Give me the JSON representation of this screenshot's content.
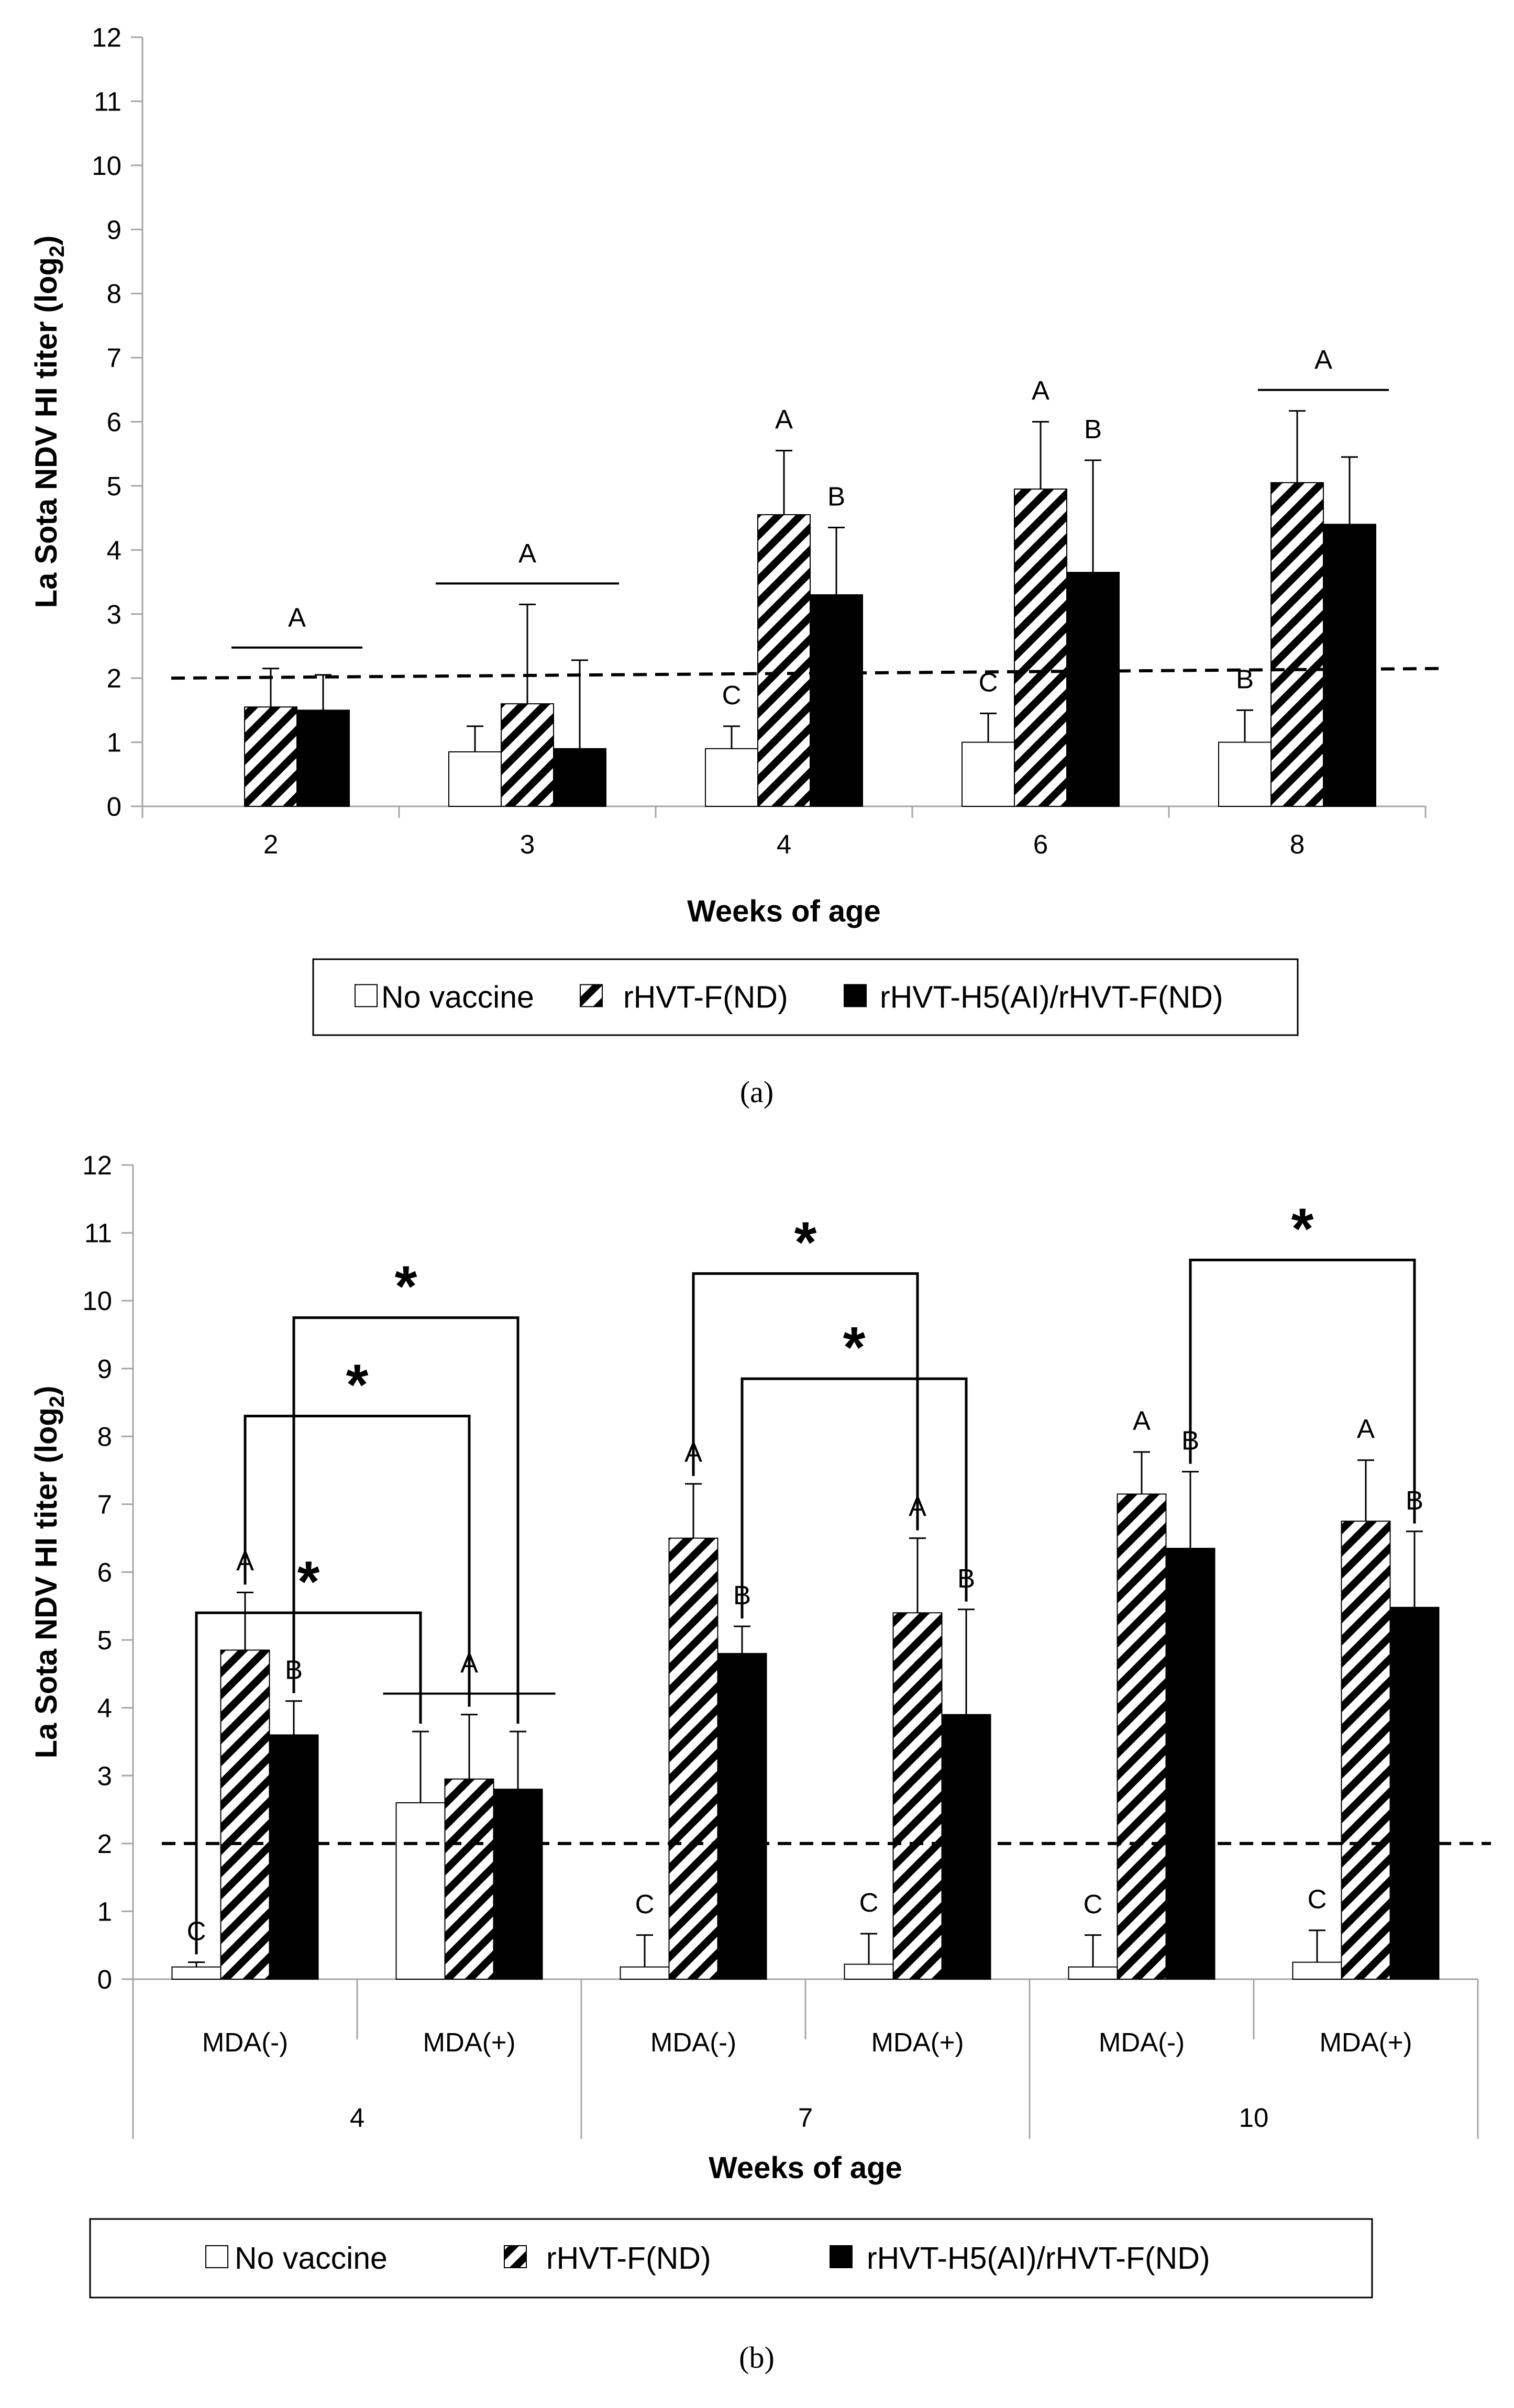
{
  "chart_data": [
    {
      "type": "bar",
      "panel_label": "(a)",
      "ylabel_parts": [
        "La Sota NDV HI titer (log",
        "2",
        ")"
      ],
      "xlabel": "Weeks of age",
      "ylim": [
        0,
        12
      ],
      "yticks": [
        0,
        1,
        2,
        3,
        4,
        5,
        6,
        7,
        8,
        9,
        10,
        11,
        12
      ],
      "categories": [
        "2",
        "3",
        "4",
        "6",
        "8"
      ],
      "series": [
        {
          "name": "No vaccine",
          "values": [
            0,
            0.85,
            0.9,
            1.0,
            1.0
          ],
          "errors": [
            0,
            0.4,
            0.35,
            0.45,
            0.5
          ]
        },
        {
          "name": "rHVT-F(ND)",
          "values": [
            1.55,
            1.6,
            4.55,
            4.95,
            5.05
          ],
          "errors": [
            0.6,
            1.55,
            1.0,
            1.05,
            1.12
          ]
        },
        {
          "name": "rHVT-H5(AI)/rHVT-F(ND)",
          "values": [
            1.5,
            0.9,
            3.3,
            3.65,
            4.4
          ],
          "errors": [
            0.55,
            1.38,
            1.05,
            1.75,
            1.05
          ]
        }
      ],
      "threshold": {
        "start": 2.0,
        "end": 2.15
      },
      "letters": [
        {
          "cat": 0,
          "group": "12",
          "text": "A"
        },
        {
          "cat": 1,
          "group": "012",
          "text": "A"
        },
        {
          "cat": 2,
          "series": 0,
          "text": "C"
        },
        {
          "cat": 2,
          "series": 1,
          "text": "A"
        },
        {
          "cat": 2,
          "series": 2,
          "text": "B"
        },
        {
          "cat": 3,
          "series": 0,
          "text": "C"
        },
        {
          "cat": 3,
          "series": 1,
          "text": "A"
        },
        {
          "cat": 3,
          "series": 2,
          "text": "B"
        },
        {
          "cat": 4,
          "series": 0,
          "text": "B"
        },
        {
          "cat": 4,
          "group": "12",
          "text": "A"
        }
      ]
    },
    {
      "type": "bar",
      "panel_label": "(b)",
      "ylabel_parts": [
        "La Sota NDV HI titer (log",
        "2",
        ")"
      ],
      "xlabel": "Weeks of age",
      "ylim": [
        0,
        12
      ],
      "yticks": [
        0,
        1,
        2,
        3,
        4,
        5,
        6,
        7,
        8,
        9,
        10,
        11,
        12
      ],
      "categories": [
        "MDA(-)",
        "MDA(+)",
        "MDA(-)",
        "MDA(+)",
        "MDA(-)",
        "MDA(+)"
      ],
      "outer_categories": [
        "4",
        "7",
        "10"
      ],
      "series": [
        {
          "name": "No vaccine",
          "values": [
            0.18,
            2.6,
            0.18,
            0.22,
            0.18,
            0.25
          ],
          "errors": [
            0.07,
            1.05,
            0.47,
            0.45,
            0.47,
            0.47
          ]
        },
        {
          "name": "rHVT-F(ND)",
          "values": [
            4.85,
            2.95,
            6.5,
            5.4,
            7.15,
            6.75
          ],
          "errors": [
            0.85,
            0.95,
            0.8,
            1.1,
            0.62,
            0.9
          ]
        },
        {
          "name": "rHVT-H5(AI)/rHVT-F(ND)",
          "values": [
            3.6,
            2.8,
            4.8,
            3.9,
            6.35,
            5.48
          ],
          "errors": [
            0.5,
            0.85,
            0.4,
            1.55,
            1.13,
            1.12
          ]
        }
      ],
      "threshold": {
        "start": 2.0,
        "end": 2.0
      },
      "letters": [
        {
          "cat": 0,
          "series": 0,
          "text": "C"
        },
        {
          "cat": 0,
          "series": 1,
          "text": "A"
        },
        {
          "cat": 0,
          "series": 2,
          "text": "B"
        },
        {
          "cat": 1,
          "group": "012",
          "text": "A"
        },
        {
          "cat": 2,
          "series": 0,
          "text": "C"
        },
        {
          "cat": 2,
          "series": 1,
          "text": "A"
        },
        {
          "cat": 2,
          "series": 2,
          "text": "B"
        },
        {
          "cat": 3,
          "series": 0,
          "text": "C"
        },
        {
          "cat": 3,
          "series": 1,
          "text": "A"
        },
        {
          "cat": 3,
          "series": 2,
          "text": "B"
        },
        {
          "cat": 4,
          "series": 0,
          "text": "C"
        },
        {
          "cat": 4,
          "series": 1,
          "text": "A"
        },
        {
          "cat": 4,
          "series": 2,
          "text": "B"
        },
        {
          "cat": 5,
          "series": 0,
          "text": "C"
        },
        {
          "cat": 5,
          "series": 1,
          "text": "A"
        },
        {
          "cat": 5,
          "series": 2,
          "text": "B"
        }
      ],
      "significance": [
        {
          "text": "*",
          "from": {
            "cat": 0,
            "series": 0
          },
          "to": {
            "cat": 1,
            "series": 0
          },
          "bracket_y": 5.4
        },
        {
          "text": "*",
          "from": {
            "cat": 0,
            "series": 1
          },
          "to": {
            "cat": 1,
            "series": 1
          },
          "bracket_y": 8.3
        },
        {
          "text": "*",
          "from": {
            "cat": 0,
            "series": 2
          },
          "to": {
            "cat": 1,
            "series": 2
          },
          "bracket_y": 9.75
        },
        {
          "text": "*",
          "from": {
            "cat": 2,
            "series": 1
          },
          "to": {
            "cat": 3,
            "series": 1
          },
          "bracket_y": 10.4
        },
        {
          "text": "*",
          "from": {
            "cat": 2,
            "series": 2
          },
          "to": {
            "cat": 3,
            "series": 2
          },
          "bracket_y": 8.85
        },
        {
          "text": "*",
          "from": {
            "cat": 4,
            "series": 2
          },
          "to": {
            "cat": 5,
            "series": 2
          },
          "bracket_y": 10.6
        }
      ]
    }
  ]
}
